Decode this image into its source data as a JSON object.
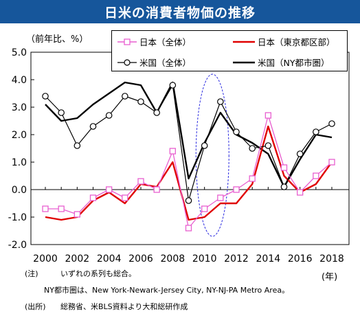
{
  "title": "日米の消費者物価の推移",
  "y_unit": "（前年比、%）",
  "x_unit": "(年)",
  "notes": {
    "note_label": "(注)",
    "note_text1": "いずれの系列も総合。",
    "note_text2": "NY都市圏は、New York-Newark-Jersey City, NY-NJ-PA Metro Area。",
    "source_label": "(出所)",
    "source_text": "総務省、米BLS資料より大和総研作成"
  },
  "colors": {
    "title_bg": "#16569b",
    "japan_total": "#e85fd0",
    "japan_tokyo": "#e00000",
    "us_total": "#000000",
    "us_ny": "#000000",
    "highlight_ellipse": "#2a2ae0"
  },
  "chart_data": {
    "type": "line",
    "x": [
      2000,
      2001,
      2002,
      2003,
      2004,
      2005,
      2006,
      2007,
      2008,
      2009,
      2010,
      2011,
      2012,
      2013,
      2014,
      2015,
      2016,
      2017,
      2018
    ],
    "xticks": [
      2000,
      2002,
      2004,
      2006,
      2008,
      2010,
      2012,
      2014,
      2016,
      2018
    ],
    "ylim": [
      -2.0,
      5.0
    ],
    "yticks": [
      "5.0",
      "4.0",
      "3.0",
      "2.0",
      "1.0",
      "0.0",
      "-1.0",
      "-2.0"
    ],
    "grid": false,
    "legend_position": "top",
    "annotation": "dashed ellipse around 2010-2011",
    "series": [
      {
        "name": "日本（全体）",
        "marker": "square-open",
        "color": "#e85fd0",
        "values": [
          -0.7,
          -0.7,
          -0.9,
          -0.3,
          0.0,
          -0.3,
          0.3,
          0.0,
          1.4,
          -1.4,
          -0.7,
          -0.3,
          0.0,
          0.4,
          2.7,
          0.8,
          -0.1,
          0.5,
          1.0
        ]
      },
      {
        "name": "日本（東京都区部）",
        "marker": "none",
        "color": "#e00000",
        "values": [
          -1.0,
          -1.1,
          -1.0,
          -0.4,
          -0.1,
          -0.5,
          0.2,
          0.1,
          1.0,
          -1.1,
          -1.0,
          -0.5,
          -0.5,
          0.2,
          2.3,
          0.5,
          -0.1,
          0.2,
          1.0
        ]
      },
      {
        "name": "米国（全体）",
        "marker": "circle-open",
        "color": "#000000",
        "values": [
          3.4,
          2.8,
          1.6,
          2.3,
          2.7,
          3.4,
          3.2,
          2.8,
          3.8,
          -0.4,
          1.6,
          3.2,
          2.1,
          1.5,
          1.6,
          0.1,
          1.3,
          2.1,
          2.4
        ]
      },
      {
        "name": "米国（NY都市圏）",
        "marker": "none",
        "color": "#000000",
        "values": [
          3.1,
          2.5,
          2.6,
          3.1,
          3.5,
          3.9,
          3.8,
          2.8,
          3.9,
          0.4,
          1.7,
          2.8,
          2.0,
          1.7,
          1.3,
          0.1,
          1.1,
          2.0,
          1.9
        ]
      }
    ]
  }
}
